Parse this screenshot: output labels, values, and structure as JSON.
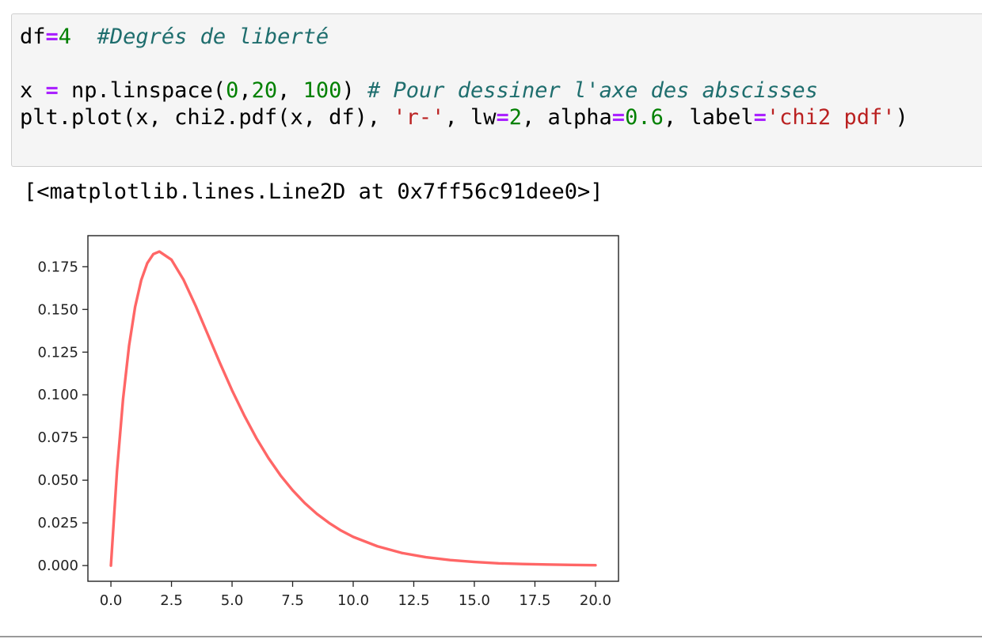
{
  "cell": {
    "lines": [
      [
        {
          "t": "df",
          "c": "plain"
        },
        {
          "t": "=",
          "c": "op"
        },
        {
          "t": "4",
          "c": "num"
        },
        {
          "t": "  ",
          "c": "plain"
        },
        {
          "t": "#Degrés de liberté",
          "c": "comment"
        }
      ],
      [],
      [
        {
          "t": "x ",
          "c": "plain"
        },
        {
          "t": "=",
          "c": "op"
        },
        {
          "t": " np.linspace(",
          "c": "plain"
        },
        {
          "t": "0",
          "c": "num"
        },
        {
          "t": ",",
          "c": "plain"
        },
        {
          "t": "20",
          "c": "num"
        },
        {
          "t": ", ",
          "c": "plain"
        },
        {
          "t": "100",
          "c": "num"
        },
        {
          "t": ") ",
          "c": "plain"
        },
        {
          "t": "# Pour dessiner l'axe des abscisses",
          "c": "comment"
        }
      ],
      [
        {
          "t": "plt.plot(x, chi2.pdf(x, df), ",
          "c": "plain"
        },
        {
          "t": "'r-'",
          "c": "str"
        },
        {
          "t": ", lw",
          "c": "plain"
        },
        {
          "t": "=",
          "c": "op"
        },
        {
          "t": "2",
          "c": "num"
        },
        {
          "t": ", alpha",
          "c": "plain"
        },
        {
          "t": "=",
          "c": "op"
        },
        {
          "t": "0.6",
          "c": "num"
        },
        {
          "t": ", label",
          "c": "plain"
        },
        {
          "t": "=",
          "c": "op"
        },
        {
          "t": "'chi2 pdf'",
          "c": "str"
        },
        {
          "t": ")",
          "c": "plain"
        }
      ]
    ]
  },
  "output": {
    "text": "[<matplotlib.lines.Line2D at 0x7ff56c91dee0>]"
  },
  "colors": {
    "line": "#ff0000",
    "line_alpha": 0.6
  },
  "chart_data": {
    "type": "line",
    "title": "",
    "xlabel": "",
    "ylabel": "",
    "xlim": [
      -0.95,
      20.95
    ],
    "ylim": [
      -0.0092,
      0.1932
    ],
    "xticks": [
      0.0,
      2.5,
      5.0,
      7.5,
      10.0,
      12.5,
      15.0,
      17.5,
      20.0
    ],
    "xtick_labels": [
      "0.0",
      "2.5",
      "5.0",
      "7.5",
      "10.0",
      "12.5",
      "15.0",
      "17.5",
      "20.0"
    ],
    "yticks": [
      0.0,
      0.025,
      0.05,
      0.075,
      0.1,
      0.125,
      0.15,
      0.175
    ],
    "ytick_labels": [
      "0.000",
      "0.025",
      "0.050",
      "0.075",
      "0.100",
      "0.125",
      "0.150",
      "0.175"
    ],
    "grid": false,
    "series": [
      {
        "x": [
          0.0,
          0.25,
          0.5,
          0.75,
          1.0,
          1.25,
          1.5,
          1.75,
          2.0,
          2.5,
          3.0,
          3.5,
          4.0,
          4.5,
          5.0,
          5.5,
          6.0,
          6.5,
          7.0,
          7.5,
          8.0,
          8.5,
          9.0,
          9.5,
          10.0,
          11.0,
          12.0,
          13.0,
          14.0,
          15.0,
          16.0,
          17.0,
          18.0,
          19.0,
          20.0
        ],
        "y": [
          0.0,
          0.0552,
          0.0974,
          0.1289,
          0.1516,
          0.1671,
          0.1771,
          0.1824,
          0.1839,
          0.1791,
          0.1673,
          0.152,
          0.1353,
          0.1186,
          0.1026,
          0.088,
          0.0747,
          0.063,
          0.0528,
          0.0441,
          0.0366,
          0.0303,
          0.025,
          0.0205,
          0.0168,
          0.0113,
          0.0074,
          0.0049,
          0.0032,
          0.0021,
          0.0013,
          0.0009,
          0.0006,
          0.0004,
          0.0002
        ]
      }
    ]
  }
}
